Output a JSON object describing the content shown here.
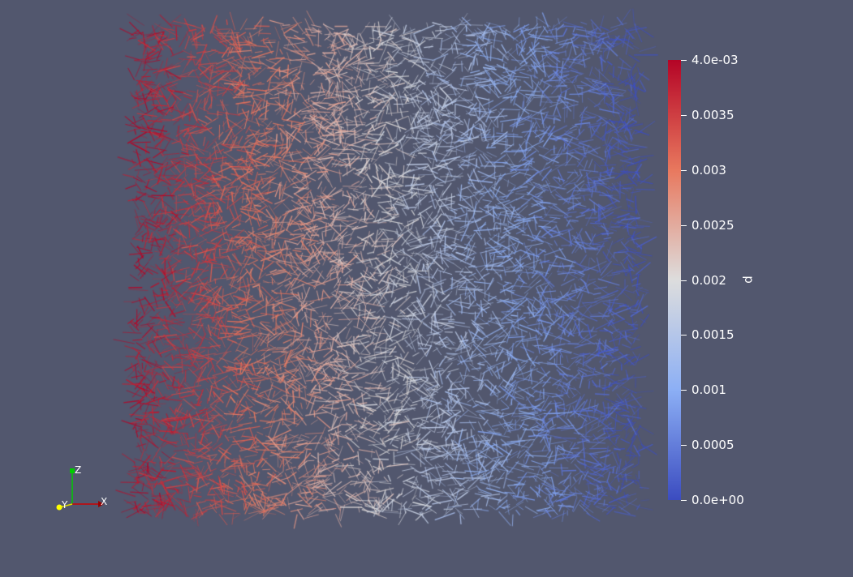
{
  "scalar_bar": {
    "title": "p",
    "ticks": [
      {
        "label": "4.0e-03",
        "value": 0.004
      },
      {
        "label": "0.0035",
        "value": 0.0035
      },
      {
        "label": "0.003",
        "value": 0.003
      },
      {
        "label": "0.0025",
        "value": 0.0025
      },
      {
        "label": "0.002",
        "value": 0.002
      },
      {
        "label": "0.0015",
        "value": 0.0015
      },
      {
        "label": "0.001",
        "value": 0.001
      },
      {
        "label": "0.0005",
        "value": 0.0005
      },
      {
        "label": "0.0e+00",
        "value": 0.0
      }
    ],
    "range": [
      0.0,
      0.004
    ],
    "colormap": [
      "#3b4cc0",
      "#dddddd",
      "#b40426"
    ]
  },
  "axes": {
    "x_label": "X",
    "y_label": "Y",
    "z_label": "Z",
    "x_color": "#cc0000",
    "y_color": "#ffff00",
    "z_color": "#00cc00"
  },
  "background_color": "#52576e"
}
